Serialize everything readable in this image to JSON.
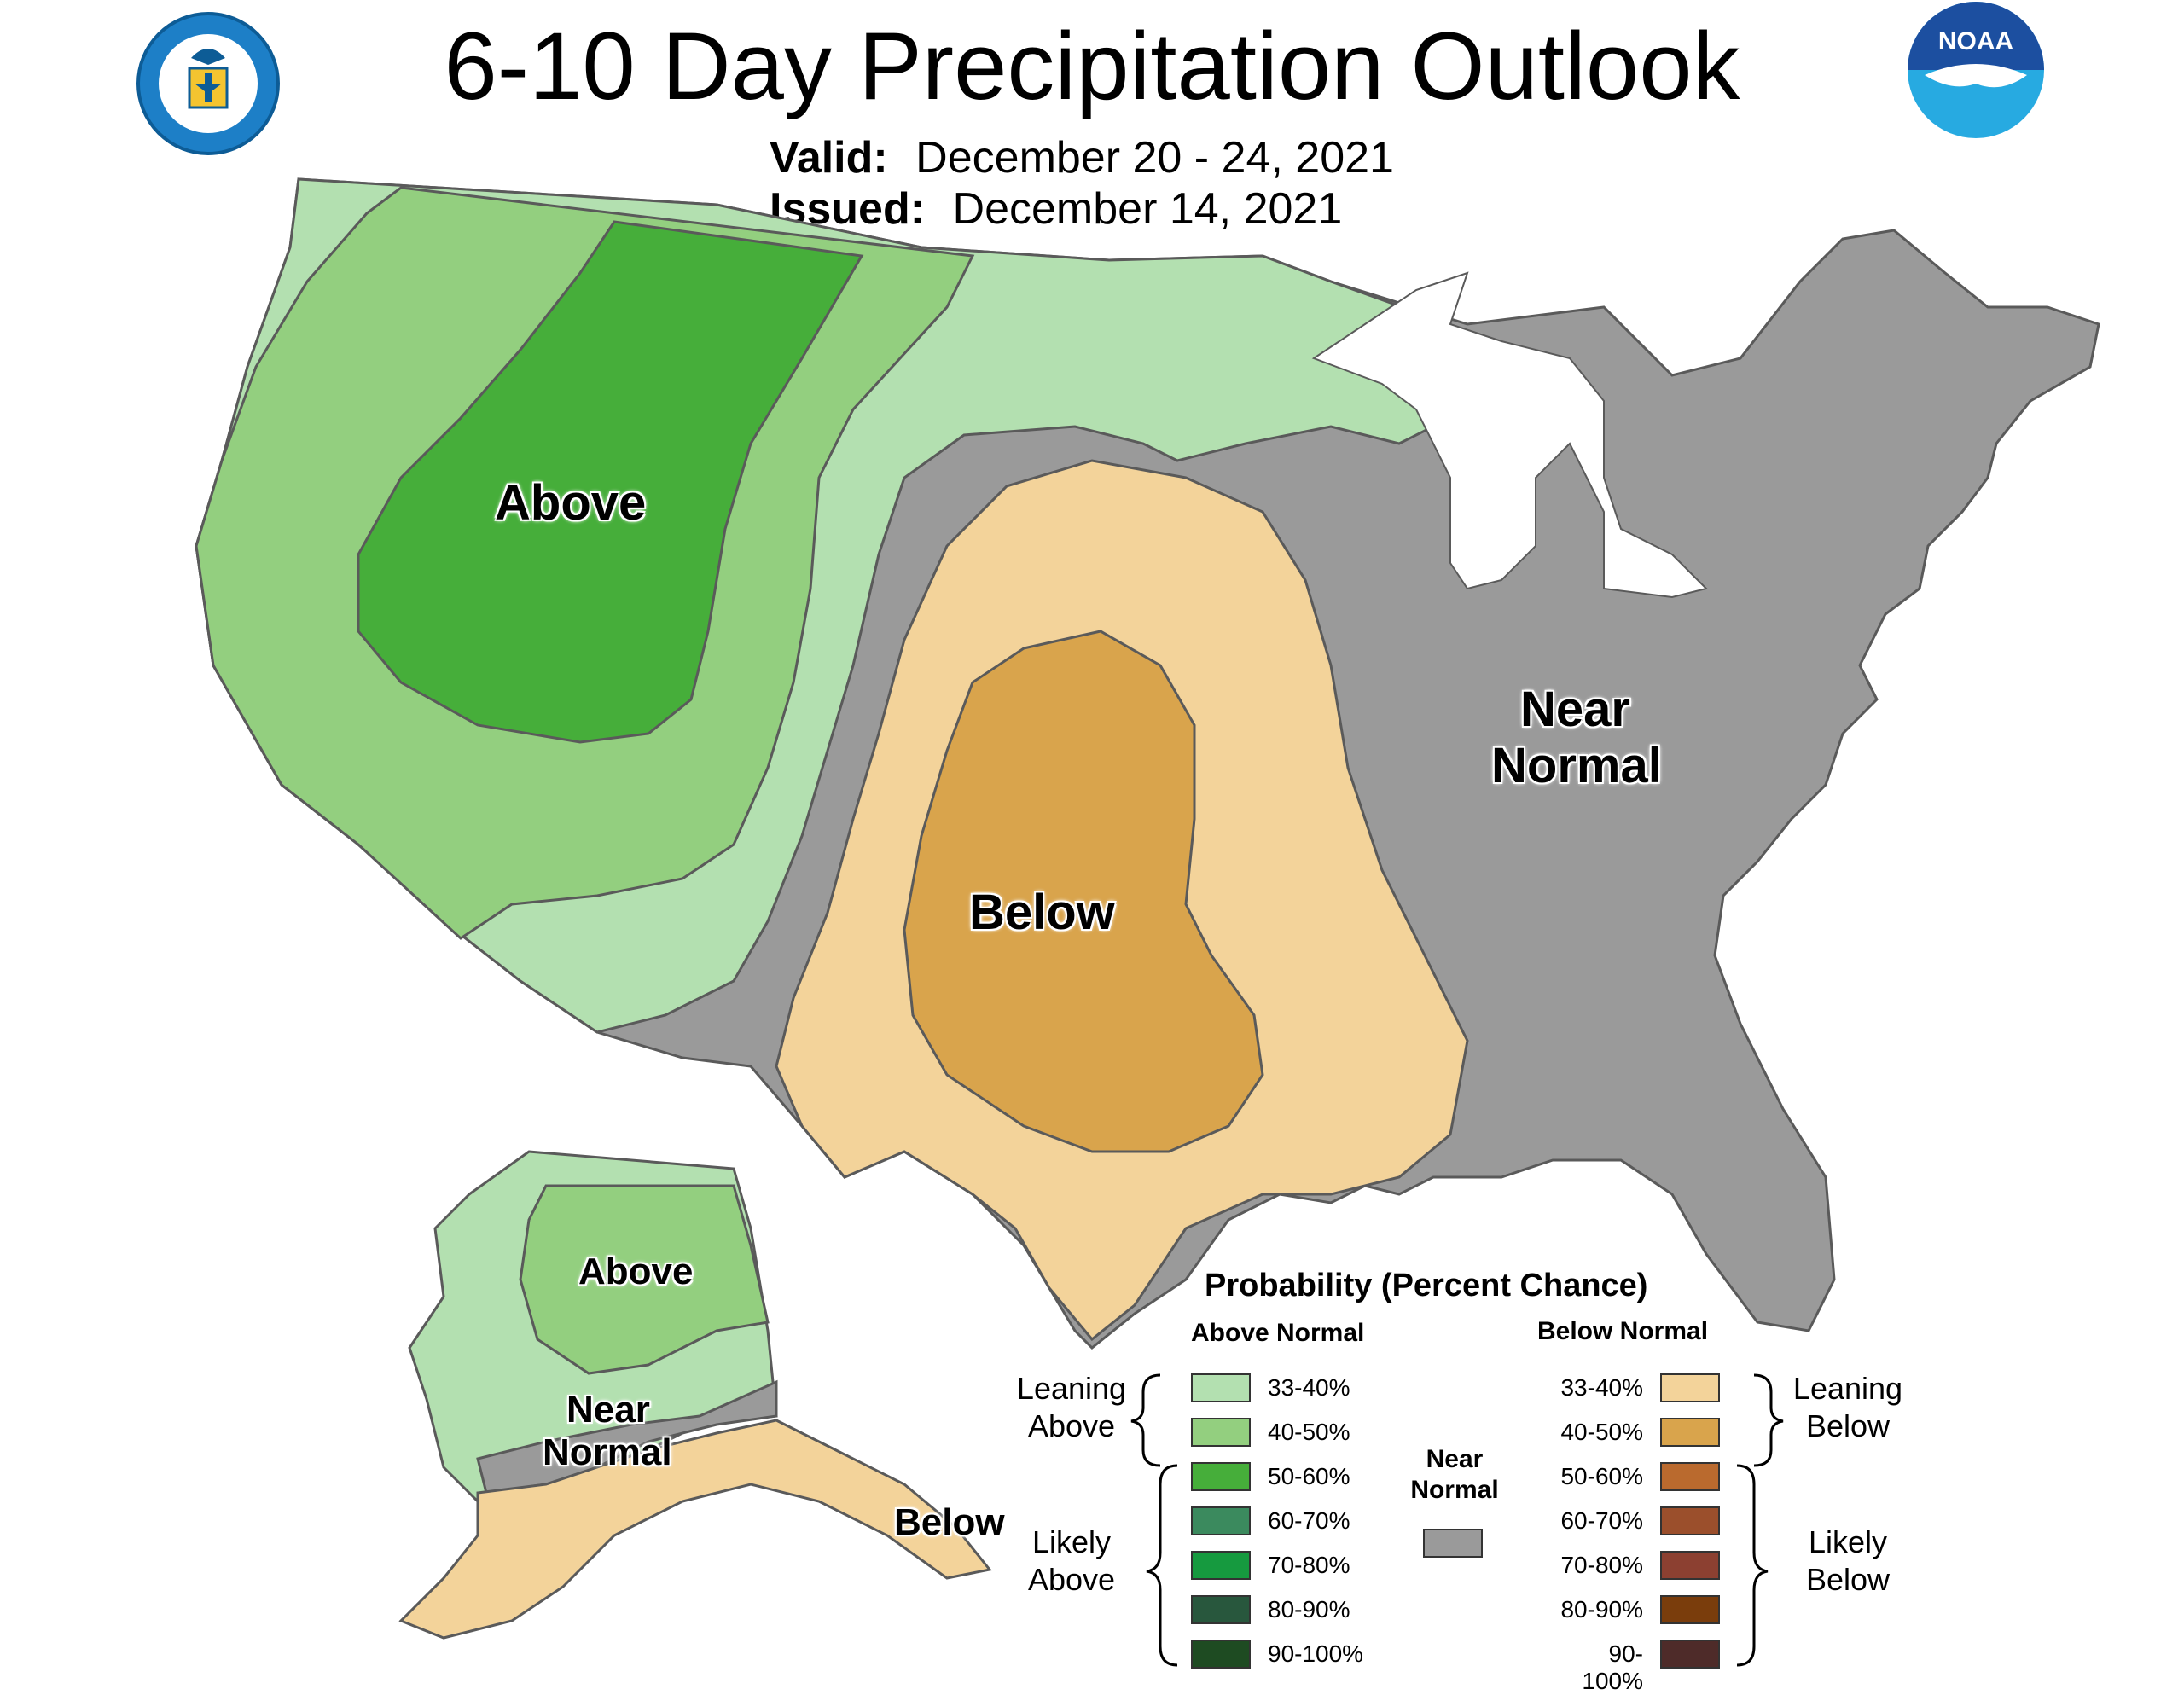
{
  "title": "6-10 Day Precipitation Outlook",
  "valid_label": "Valid:",
  "valid_value": "December 20 - 24, 2021",
  "issued_label": "Issued:",
  "issued_value": "December 14, 2021",
  "logos": {
    "left": "DEPARTMENT OF COMMERCE · UNITED STATES OF AMERICA",
    "right": "NOAA"
  },
  "map_labels": {
    "conus_above": "Above",
    "conus_below": "Below",
    "conus_near_1": "Near",
    "conus_near_2": "Normal",
    "ak_above": "Above",
    "ak_near_1": "Near",
    "ak_near_2": "Normal",
    "ak_below": "Below"
  },
  "legend": {
    "title": "Probability (Percent Chance)",
    "above_header": "Above Normal",
    "below_header": "Below Normal",
    "near_header_1": "Near",
    "near_header_2": "Normal",
    "leaning_above_1": "Leaning",
    "leaning_above_2": "Above",
    "likely_above_1": "Likely",
    "likely_above_2": "Above",
    "leaning_below_1": "Leaning",
    "leaning_below_2": "Below",
    "likely_below_1": "Likely",
    "likely_below_2": "Below",
    "above": [
      {
        "label": "33-40%",
        "color": "#b3e0b0"
      },
      {
        "label": "40-50%",
        "color": "#93cf7f"
      },
      {
        "label": "50-60%",
        "color": "#46ae3a"
      },
      {
        "label": "60-70%",
        "color": "#3b8a5e"
      },
      {
        "label": "70-80%",
        "color": "#169a3f"
      },
      {
        "label": "80-90%",
        "color": "#28573d"
      },
      {
        "label": "90-100%",
        "color": "#1e4b22"
      }
    ],
    "below": [
      {
        "label": "33-40%",
        "color": "#f3d39a"
      },
      {
        "label": "40-50%",
        "color": "#d9a44c"
      },
      {
        "label": "50-60%",
        "color": "#ba6a2e"
      },
      {
        "label": "60-70%",
        "color": "#9b4f2c"
      },
      {
        "label": "70-80%",
        "color": "#8c4031"
      },
      {
        "label": "80-90%",
        "color": "#7a3d0c"
      },
      {
        "label": "90-100%",
        "color": "#4e2b29"
      }
    ],
    "near_color": "#9a9a9a"
  }
}
